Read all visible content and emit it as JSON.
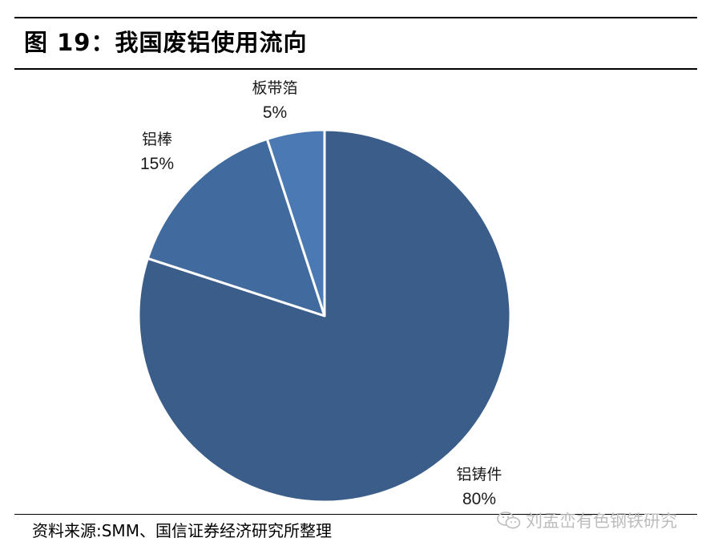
{
  "figure": {
    "title": "图 19：我国废铝使用流向"
  },
  "chart_data": {
    "type": "pie",
    "title": "",
    "categories": [
      "铝铸件",
      "铝棒",
      "板带箔"
    ],
    "values": [
      80,
      15,
      5
    ],
    "value_labels": [
      "80%",
      "15%",
      "5%"
    ],
    "start": "12 o'clock",
    "direction": "clockwise",
    "colors": [
      "#3b5d8a",
      "#416b9f",
      "#4a79b4"
    ],
    "legend": "none"
  },
  "source": {
    "text": "资料来源:SMM、国信证券经济研究所整理"
  },
  "watermark": {
    "text": "刘孟峦有色钢铁研究",
    "icon": "wechat-icon"
  }
}
